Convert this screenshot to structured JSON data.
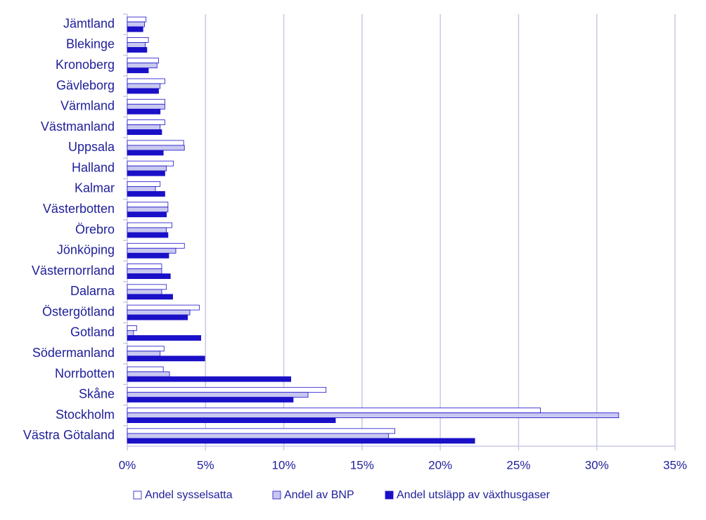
{
  "chart_data": {
    "type": "hbar",
    "categories": [
      "Jämtland",
      "Blekinge",
      "Kronoberg",
      "Gävleborg",
      "Värmland",
      "Västmanland",
      "Uppsala",
      "Halland",
      "Kalmar",
      "Västerbotten",
      "Örebro",
      "Jönköping",
      "Västernorrland",
      "Dalarna",
      "Östergötland",
      "Gotland",
      "Södermanland",
      "Norrbotten",
      "Skåne",
      "Stockholm",
      "Västra Götaland"
    ],
    "series": [
      {
        "name": "Andel sysselsatta",
        "color": "#ffffff",
        "values": [
          1.2,
          1.35,
          2.0,
          2.4,
          2.4,
          2.4,
          3.6,
          2.95,
          2.1,
          2.6,
          2.85,
          3.65,
          2.2,
          2.5,
          4.6,
          0.6,
          2.35,
          2.3,
          12.7,
          26.4,
          17.1
        ]
      },
      {
        "name": "Andel av BNP",
        "color": "#c8c8f0",
        "values": [
          1.1,
          1.15,
          1.9,
          2.1,
          2.4,
          2.1,
          3.65,
          2.5,
          1.8,
          2.6,
          2.5,
          3.1,
          2.2,
          2.2,
          4.0,
          0.4,
          2.1,
          2.7,
          11.55,
          31.4,
          16.7
        ]
      },
      {
        "name": "Andel utsläpp av växthusgaser",
        "color": "#1a10c8",
        "values": [
          1.0,
          1.25,
          1.35,
          2.0,
          2.1,
          2.2,
          2.3,
          2.4,
          2.4,
          2.5,
          2.6,
          2.65,
          2.75,
          2.9,
          3.85,
          4.7,
          4.95,
          10.45,
          10.6,
          13.3,
          22.2
        ]
      }
    ],
    "xlim": [
      0,
      35
    ],
    "xticks": [
      {
        "value": 0,
        "label": "0%"
      },
      {
        "value": 5,
        "label": "5%"
      },
      {
        "value": 10,
        "label": "10%"
      },
      {
        "value": 15,
        "label": "15%"
      },
      {
        "value": 20,
        "label": "20%"
      },
      {
        "value": 25,
        "label": "25%"
      },
      {
        "value": 30,
        "label": "30%"
      },
      {
        "value": 35,
        "label": "35%"
      }
    ],
    "grid": true
  }
}
